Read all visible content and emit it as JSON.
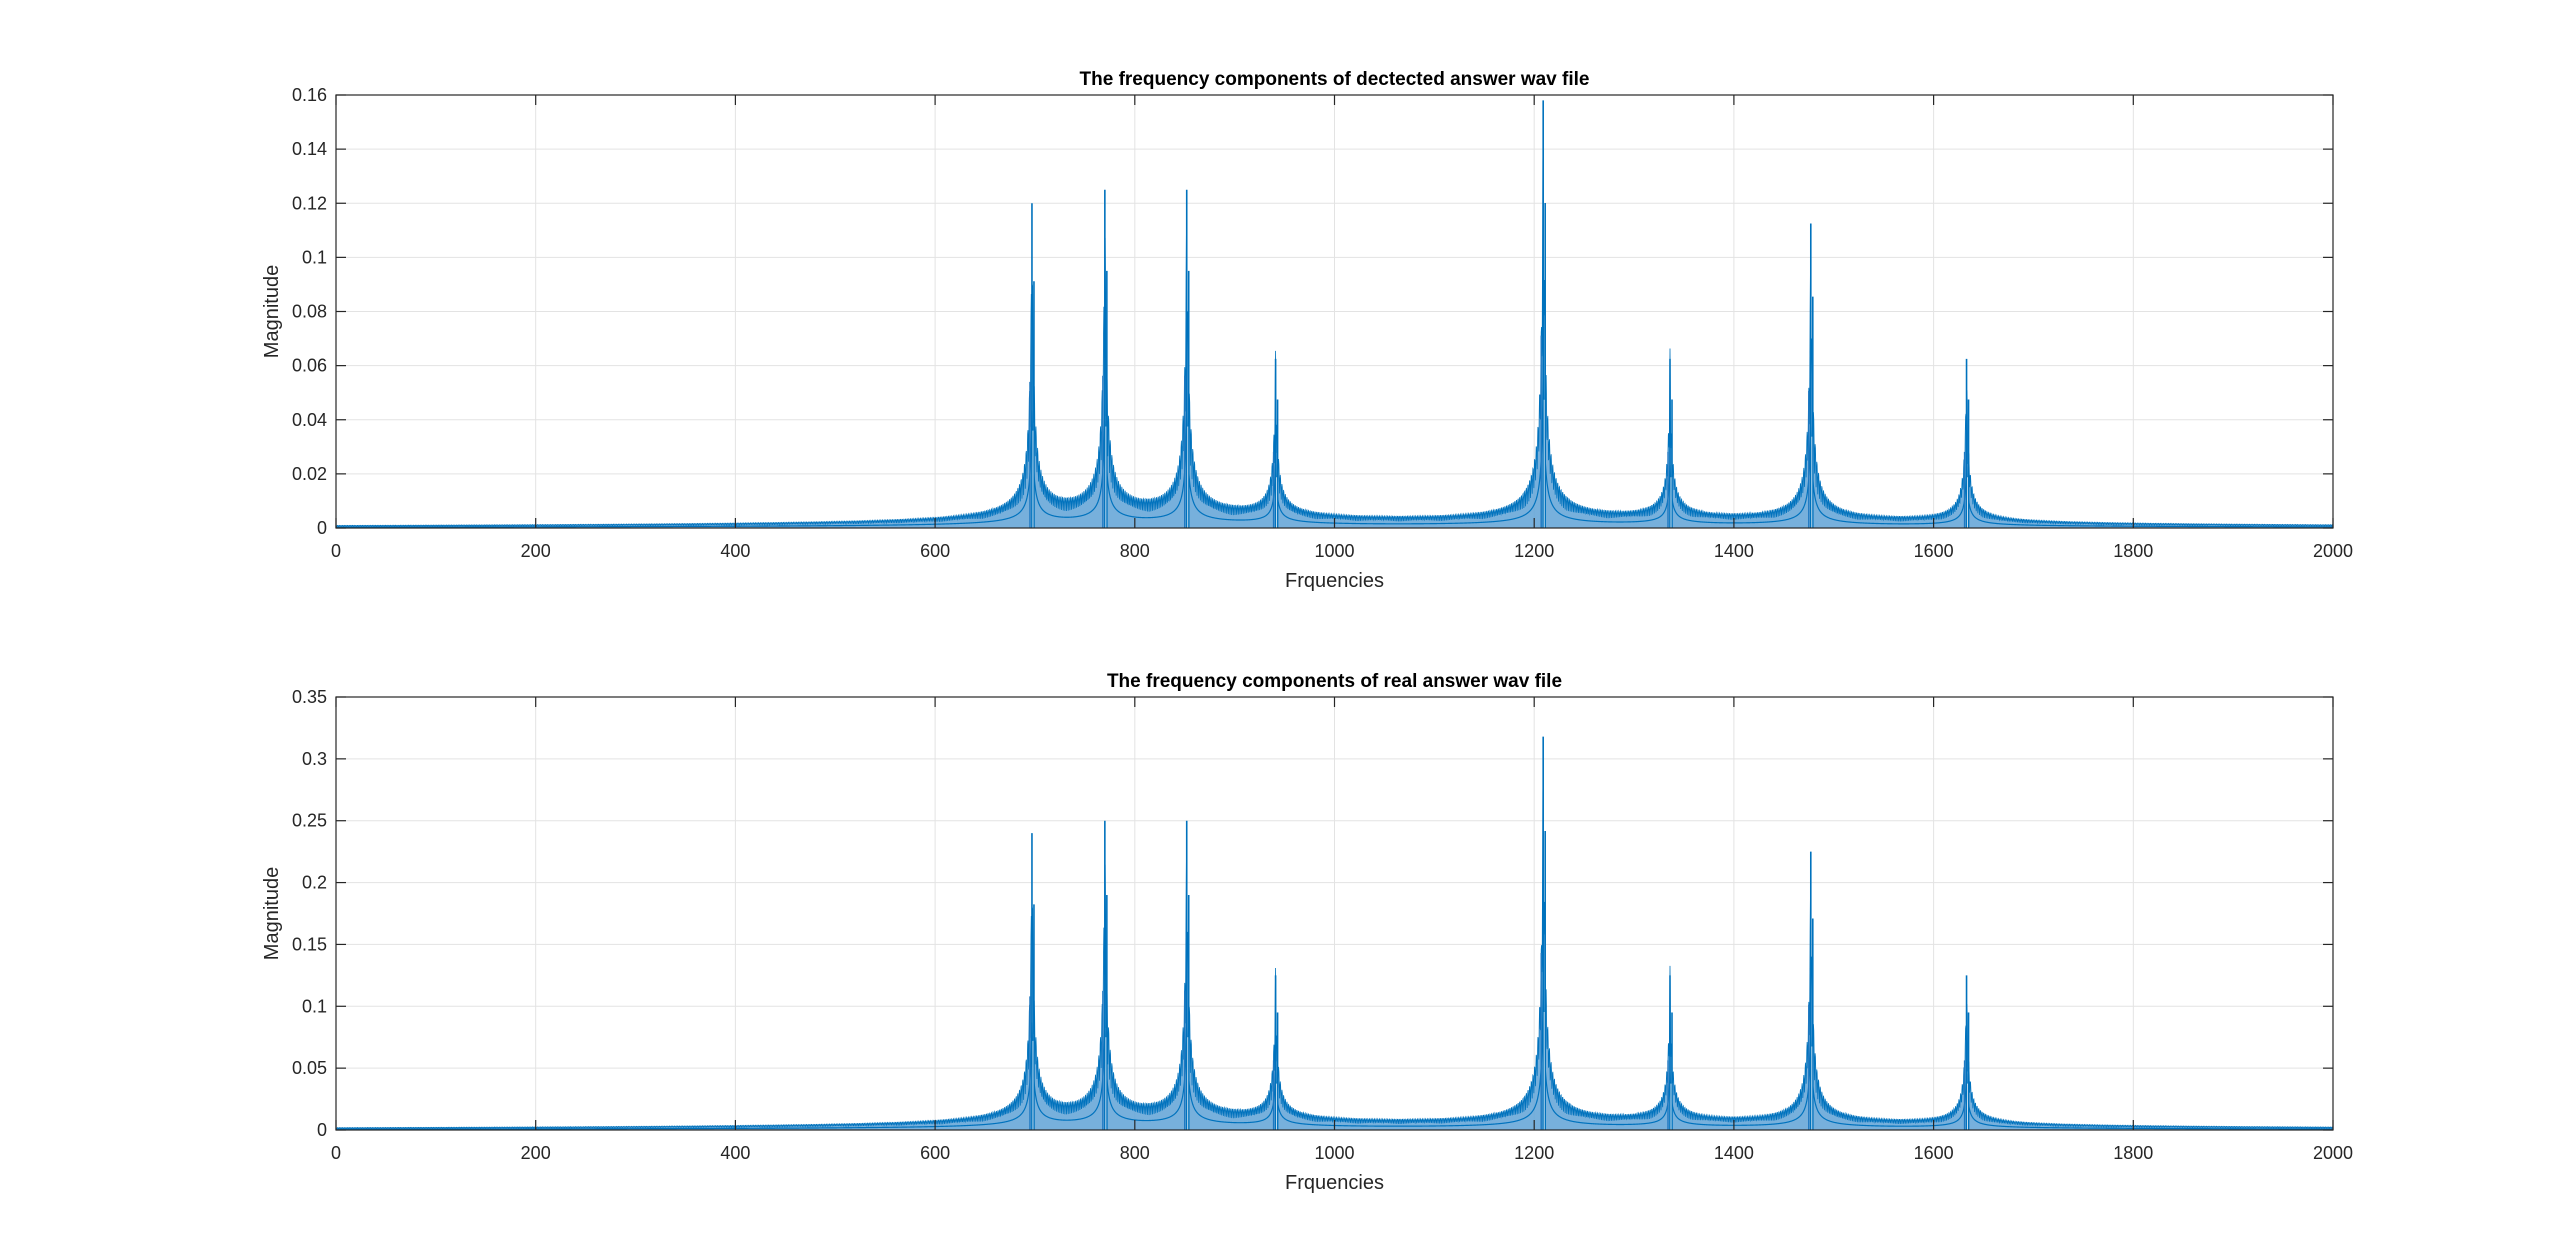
{
  "chart_data": [
    {
      "type": "line",
      "title": "The frequency components of dectected answer wav file",
      "xlabel": "Frquencies",
      "ylabel": "Magnitude",
      "xlim": [
        0,
        2000
      ],
      "ylim": [
        0,
        0.16
      ],
      "xticks": [
        0,
        200,
        400,
        600,
        800,
        1000,
        1200,
        1400,
        1600,
        1800,
        2000
      ],
      "xtick_labels": [
        "0",
        "200",
        "400",
        "600",
        "800",
        "1000",
        "1200",
        "1400",
        "1600",
        "1800",
        "2000"
      ],
      "yticks": [
        0,
        0.02,
        0.04,
        0.06,
        0.08,
        0.1,
        0.12,
        0.14,
        0.16
      ],
      "ytick_labels": [
        "0",
        "0.02",
        "0.04",
        "0.06",
        "0.08",
        "0.1",
        "0.12",
        "0.14",
        "0.16"
      ],
      "grid": true,
      "color": "#0072BD",
      "peaks": [
        {
          "x": 697,
          "y": 0.12
        },
        {
          "x": 770,
          "y": 0.125
        },
        {
          "x": 852,
          "y": 0.125
        },
        {
          "x": 941,
          "y": 0.0625
        },
        {
          "x": 1209,
          "y": 0.158
        },
        {
          "x": 1336,
          "y": 0.0625
        },
        {
          "x": 1477,
          "y": 0.1125
        },
        {
          "x": 1633,
          "y": 0.0625
        }
      ]
    },
    {
      "type": "line",
      "title": "The frequency components of real answer wav file",
      "xlabel": "Frquencies",
      "ylabel": "Magnitude",
      "xlim": [
        0,
        2000
      ],
      "ylim": [
        0,
        0.35
      ],
      "xticks": [
        0,
        200,
        400,
        600,
        800,
        1000,
        1200,
        1400,
        1600,
        1800,
        2000
      ],
      "xtick_labels": [
        "0",
        "200",
        "400",
        "600",
        "800",
        "1000",
        "1200",
        "1400",
        "1600",
        "1800",
        "2000"
      ],
      "yticks": [
        0,
        0.05,
        0.1,
        0.15,
        0.2,
        0.25,
        0.3,
        0.35
      ],
      "ytick_labels": [
        "0",
        "0.05",
        "0.1",
        "0.15",
        "0.2",
        "0.25",
        "0.3",
        "0.35"
      ],
      "grid": true,
      "color": "#0072BD",
      "peaks": [
        {
          "x": 697,
          "y": 0.24
        },
        {
          "x": 770,
          "y": 0.25
        },
        {
          "x": 852,
          "y": 0.25
        },
        {
          "x": 941,
          "y": 0.125
        },
        {
          "x": 1209,
          "y": 0.318
        },
        {
          "x": 1336,
          "y": 0.125
        },
        {
          "x": 1477,
          "y": 0.225
        },
        {
          "x": 1633,
          "y": 0.125
        }
      ]
    }
  ]
}
